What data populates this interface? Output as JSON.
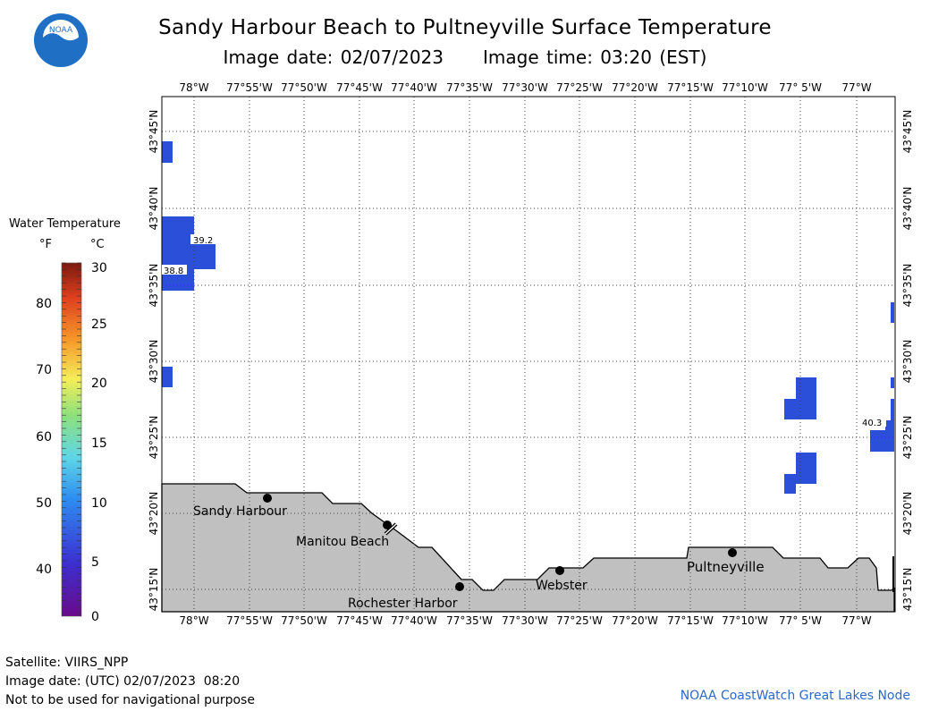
{
  "title": "Sandy Harbour Beach to Pultneyville Surface Temperature",
  "image_date_label": "Image date: 02/07/2023",
  "image_time_label": "Image time: 03:20 (EST)",
  "logo_text": "NOAA",
  "lon_ticks": [
    "78°W",
    "77°55'W",
    "77°50'W",
    "77°45'W",
    "77°40'W",
    "77°35'W",
    "77°30'W",
    "77°25'W",
    "77°20'W",
    "77°15'W",
    "77°10'W",
    "77° 5'W",
    "77°W"
  ],
  "lat_ticks": [
    "43°45'N",
    "43°40'N",
    "43°35'N",
    "43°30'N",
    "43°25'N",
    "43°20'N",
    "43°15'N"
  ],
  "places": [
    "Sandy Harbour",
    "Manitou Beach",
    "Rochester Harbor",
    "Webster",
    "Pultneyville"
  ],
  "temperature_labels": [
    "39.2",
    "38.8",
    "40.3"
  ],
  "legend": {
    "title": "Water Temperature",
    "f_label": "°F",
    "c_label": "°C",
    "f_ticks": [
      "80",
      "70",
      "60",
      "50",
      "40"
    ],
    "c_ticks": [
      "30",
      "25",
      "20",
      "15",
      "10",
      "5",
      "0"
    ]
  },
  "footer": {
    "satellite": "Satellite: VIIRS_NPP",
    "utc_date": "Image date: (UTC) 02/07/2023  08:20",
    "disclaimer": "Not to be used for navigational purpose",
    "credit": "NOAA CoastWatch Great Lakes Node"
  },
  "colors": {
    "water_pixel": "#2b4fd8",
    "land": "#c0c0c0",
    "credit": "#2c69c9"
  }
}
